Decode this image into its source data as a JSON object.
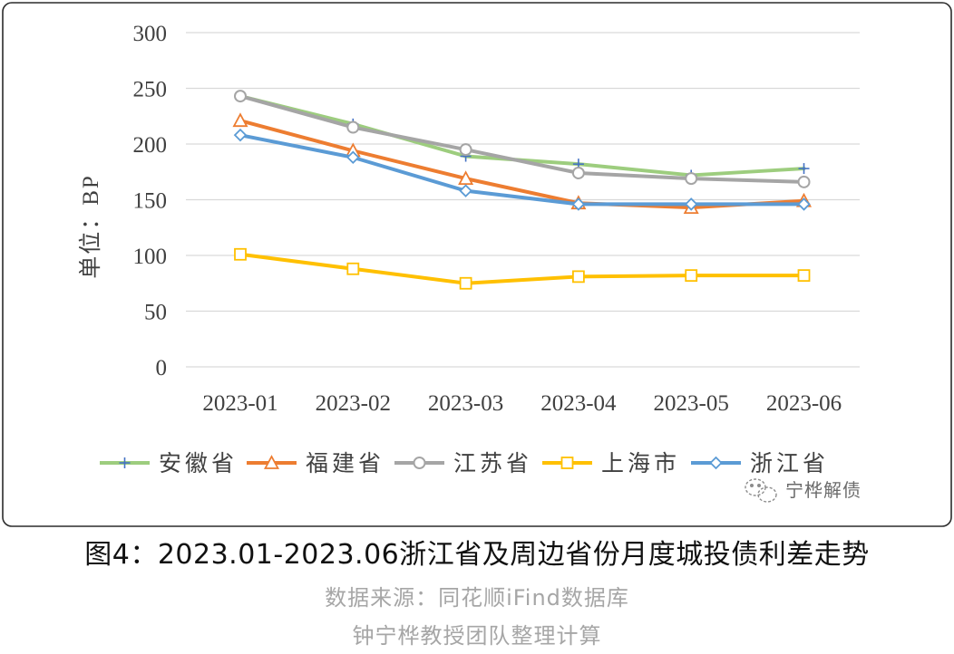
{
  "chart_data": {
    "type": "line",
    "categories": [
      "2023-01",
      "2023-02",
      "2023-03",
      "2023-04",
      "2023-05",
      "2023-06"
    ],
    "series": [
      {
        "name": "安徽省",
        "values": [
          243,
          218,
          189,
          182,
          172,
          178
        ],
        "color": "#9dcd7e",
        "marker": "plus",
        "marker_color": "#4472c4"
      },
      {
        "name": "福建省",
        "values": [
          221,
          194,
          169,
          147,
          143,
          149
        ],
        "color": "#ed7d31",
        "marker": "triangle"
      },
      {
        "name": "江苏省",
        "values": [
          243,
          215,
          195,
          174,
          169,
          166
        ],
        "color": "#a5a5a5",
        "marker": "circle"
      },
      {
        "name": "上海市",
        "values": [
          101,
          88,
          75,
          81,
          82,
          82
        ],
        "color": "#ffc000",
        "marker": "square"
      },
      {
        "name": "浙江省",
        "values": [
          208,
          188,
          158,
          146,
          146,
          146
        ],
        "color": "#5b9bd5",
        "marker": "diamond"
      }
    ],
    "ylabel": "单位：BP",
    "ylim": [
      0,
      300
    ],
    "yticks": [
      0,
      50,
      100,
      150,
      200,
      250,
      300
    ],
    "grid": true,
    "legend": "bottom"
  },
  "watermark": {
    "text": "宁桦解债",
    "icon": "wechat-logo-icon"
  },
  "caption": {
    "title": "图4：2023.01-2023.06浙江省及周边省份月度城投债利差走势",
    "source": "数据来源：同花顺iFind数据库",
    "credit": "钟宁桦教授团队整理计算"
  },
  "colors": {
    "border": "#2b2b2b",
    "grid": "#d9d9d9",
    "caption_sub": "#a6a6a6"
  }
}
